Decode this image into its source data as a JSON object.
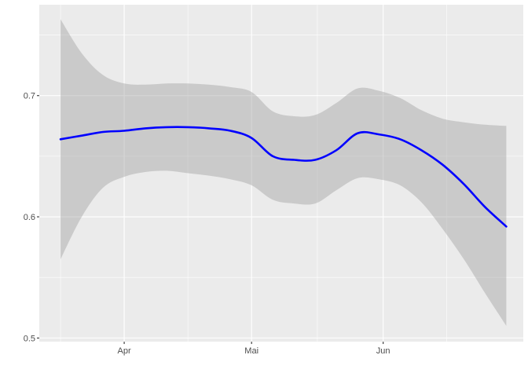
{
  "chart_data": {
    "type": "line",
    "title": "",
    "xlabel": "",
    "ylabel": "",
    "x_ticks": [
      "Apr",
      "Mai",
      "Jun"
    ],
    "y_ticks": [
      "0.5",
      "0.6",
      "0.7"
    ],
    "ylim": [
      0.497,
      0.775
    ],
    "xlim": [
      "2021-03-12",
      "2021-07-04"
    ],
    "grid": true,
    "legend": "none",
    "colors": {
      "line": "#0000FF",
      "ribbon": "#999999",
      "panel": "#EBEBEB"
    },
    "series": [
      {
        "x": [
          "2021-03-17",
          "2021-03-22",
          "2021-03-27",
          "2021-04-01",
          "2021-04-06",
          "2021-04-11",
          "2021-04-16",
          "2021-04-21",
          "2021-04-26",
          "2021-05-01",
          "2021-05-06",
          "2021-05-11",
          "2021-05-16",
          "2021-05-21",
          "2021-05-26",
          "2021-05-31",
          "2021-06-05",
          "2021-06-10",
          "2021-06-15",
          "2021-06-20",
          "2021-06-25",
          "2021-06-30"
        ],
        "y": [
          0.664,
          0.667,
          0.67,
          0.671,
          0.673,
          0.674,
          0.674,
          0.673,
          0.671,
          0.665,
          0.65,
          0.647,
          0.647,
          0.655,
          0.669,
          0.668,
          0.664,
          0.655,
          0.643,
          0.627,
          0.608,
          0.592
        ],
        "ymin": [
          0.565,
          0.6,
          0.624,
          0.633,
          0.637,
          0.638,
          0.636,
          0.634,
          0.631,
          0.626,
          0.614,
          0.611,
          0.611,
          0.622,
          0.632,
          0.631,
          0.626,
          0.612,
          0.59,
          0.565,
          0.537,
          0.51
        ],
        "ymax": [
          0.763,
          0.735,
          0.717,
          0.71,
          0.709,
          0.71,
          0.71,
          0.709,
          0.707,
          0.703,
          0.687,
          0.683,
          0.684,
          0.694,
          0.706,
          0.704,
          0.698,
          0.688,
          0.681,
          0.678,
          0.676,
          0.675
        ]
      }
    ]
  }
}
